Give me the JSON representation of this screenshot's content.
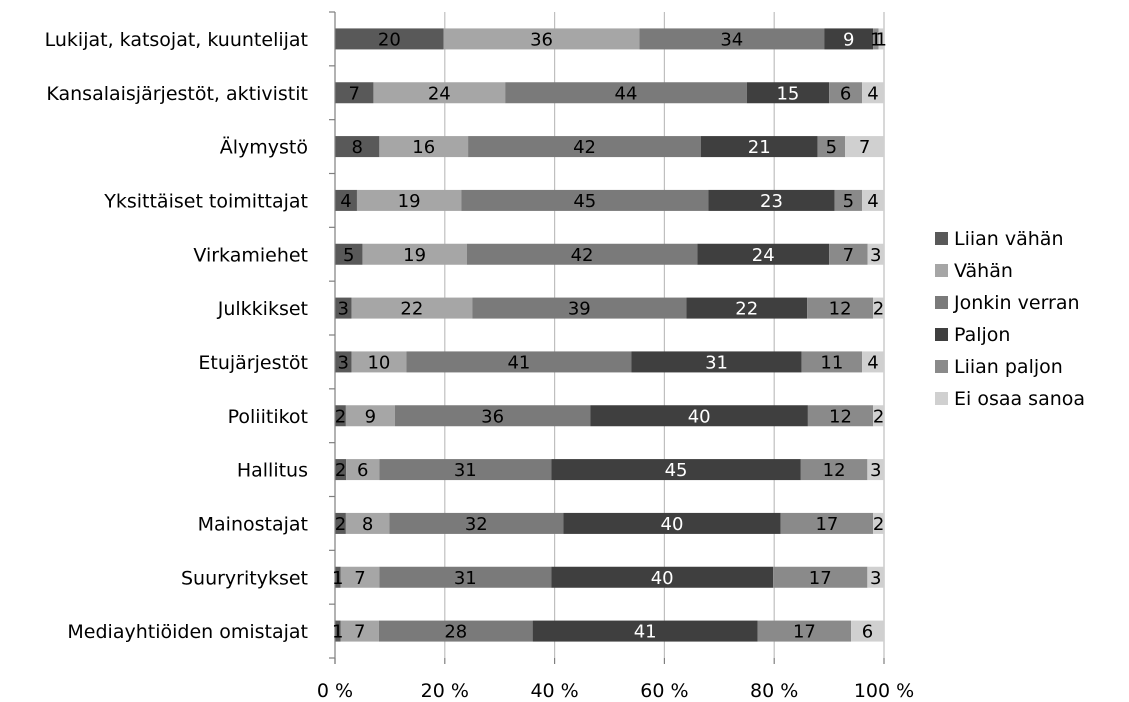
{
  "chart_data": {
    "type": "bar",
    "orientation": "horizontal",
    "stacked": "percent",
    "title": "",
    "xlabel": "",
    "ylabel": "",
    "xlim": [
      0,
      100
    ],
    "x_ticks": [
      "0 %",
      "20 %",
      "40 %",
      "60 %",
      "80 %",
      "100 %"
    ],
    "grid": true,
    "legend_position": "right",
    "categories": [
      "Lukijat, katsojat, kuuntelijat",
      "Kansalaisjärjestöt, aktivistit",
      "Älymystö",
      "Yksittäiset toimittajat",
      "Virkamiehet",
      "Julkkikset",
      "Etujärjestöt",
      "Poliitikot",
      "Hallitus",
      "Mainostajat",
      "Suuryritykset",
      "Mediayhtiöiden omistajat"
    ],
    "series": [
      {
        "name": "Liian vähän",
        "color": "#595959",
        "label_color": "#000000",
        "values": [
          20,
          7,
          8,
          4,
          5,
          3,
          3,
          2,
          2,
          2,
          1,
          1
        ]
      },
      {
        "name": "Vähän",
        "color": "#a6a6a6",
        "label_color": "#000000",
        "values": [
          36,
          24,
          16,
          19,
          19,
          22,
          10,
          9,
          6,
          8,
          7,
          7
        ]
      },
      {
        "name": "Jonkin verran",
        "color": "#7a7a7a",
        "label_color": "#000000",
        "values": [
          34,
          44,
          42,
          45,
          42,
          39,
          41,
          36,
          31,
          32,
          31,
          28
        ]
      },
      {
        "name": "Paljon",
        "color": "#3f3f3f",
        "label_color": "#ffffff",
        "values": [
          9,
          15,
          21,
          23,
          24,
          22,
          31,
          40,
          45,
          40,
          40,
          41
        ]
      },
      {
        "name": "Liian paljon",
        "color": "#8a8a8a",
        "label_color": "#000000",
        "values": [
          1,
          6,
          5,
          5,
          7,
          12,
          11,
          12,
          12,
          17,
          17,
          17
        ]
      },
      {
        "name": "Ei osaa sanoa",
        "color": "#d0d0d0",
        "label_color": "#000000",
        "values": [
          1,
          4,
          7,
          4,
          3,
          2,
          4,
          2,
          3,
          2,
          3,
          6
        ]
      }
    ]
  }
}
